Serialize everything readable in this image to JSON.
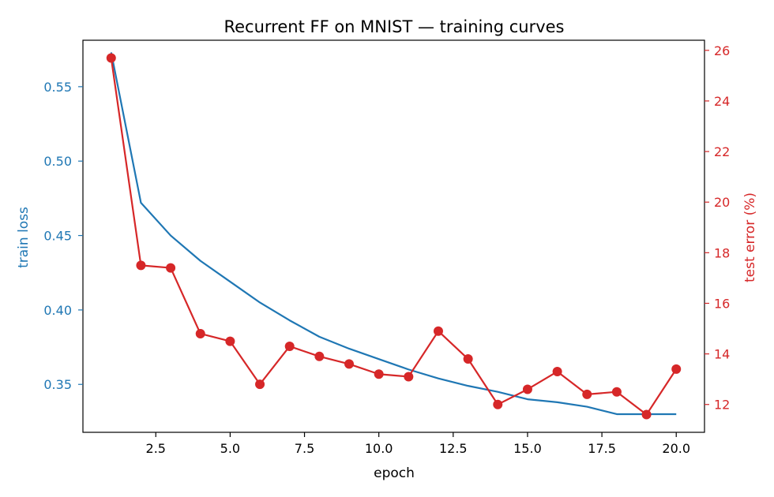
{
  "chart_data": {
    "type": "line",
    "title": "Recurrent FF on MNIST — training curves",
    "xlabel": "epoch",
    "ylabel": "train loss",
    "y2label": "test error (%)",
    "xlim": [
      0.05,
      20.95
    ],
    "ylim": [
      0.3178,
      0.5812
    ],
    "y2lim": [
      10.9,
      26.4
    ],
    "xticks": [
      2.5,
      5.0,
      7.5,
      10.0,
      12.5,
      15.0,
      17.5,
      20.0
    ],
    "xtick_labels": [
      "2.5",
      "5.0",
      "7.5",
      "10.0",
      "12.5",
      "15.0",
      "17.5",
      "20.0"
    ],
    "yticks": [
      0.35,
      0.4,
      0.45,
      0.5,
      0.55
    ],
    "ytick_labels": [
      "0.35",
      "0.40",
      "0.45",
      "0.50",
      "0.55"
    ],
    "y2ticks": [
      12,
      14,
      16,
      18,
      20,
      22,
      24,
      26
    ],
    "y2tick_labels": [
      "12",
      "14",
      "16",
      "18",
      "20",
      "22",
      "24",
      "26"
    ],
    "x": [
      1,
      2,
      3,
      4,
      5,
      6,
      7,
      8,
      9,
      10,
      11,
      12,
      13,
      14,
      15,
      16,
      17,
      18,
      19,
      20
    ],
    "series": [
      {
        "axis": "left",
        "color": "#1f77b4",
        "markers": false,
        "values": [
          0.573,
          0.472,
          0.45,
          0.433,
          0.419,
          0.405,
          0.393,
          0.382,
          0.374,
          0.367,
          0.36,
          0.354,
          0.349,
          0.345,
          0.34,
          0.338,
          0.335,
          0.33,
          0.33,
          0.33
        ]
      },
      {
        "axis": "right",
        "color": "#d62728",
        "markers": true,
        "values": [
          25.7,
          17.5,
          17.4,
          14.8,
          14.5,
          12.8,
          14.3,
          13.9,
          13.6,
          13.2,
          13.1,
          14.9,
          13.8,
          12.0,
          12.6,
          13.3,
          12.4,
          12.5,
          11.6,
          13.4
        ]
      }
    ],
    "grid": false,
    "legend": false
  },
  "colors": {
    "left_axis": "#1f77b4",
    "right_axis": "#d62728",
    "frame": "#000000"
  }
}
